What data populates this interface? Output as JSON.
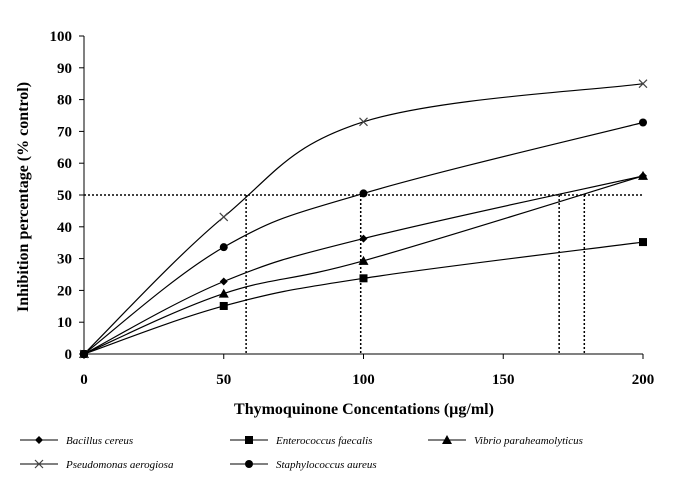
{
  "chart_data": {
    "type": "line",
    "xlabel": "Thymoquinone Concentations (µg/ml)",
    "ylabel": "Inhibition percentage (% control)",
    "xlim": [
      0,
      200
    ],
    "ylim": [
      0,
      100
    ],
    "xticks": [
      0,
      50,
      100,
      150,
      200
    ],
    "yticks": [
      0,
      10,
      20,
      30,
      40,
      50,
      60,
      70,
      80,
      90,
      100
    ],
    "grid": false,
    "legend_position": "bottom",
    "x": [
      0,
      50,
      100,
      200
    ],
    "series": [
      {
        "name": "Bacillus cereus",
        "marker": "diamond",
        "values": [
          0,
          22.8,
          36.3,
          56
        ]
      },
      {
        "name": "Enterococcus faecalis",
        "marker": "square",
        "values": [
          0,
          15.1,
          23.8,
          35.2
        ]
      },
      {
        "name": "Vibrio paraheamolyticus",
        "marker": "triangle",
        "values": [
          0,
          19,
          29.3,
          56
        ]
      },
      {
        "name": "Pseudomonas aerogiosa",
        "marker": "x",
        "values": [
          0,
          43.1,
          73,
          85
        ]
      },
      {
        "name": "Staphylococcus aureus",
        "marker": "circle",
        "values": [
          0,
          33.6,
          50.5,
          72.8
        ]
      }
    ],
    "reference_lines": {
      "horizontal_y": 50,
      "vertical_x": [
        58,
        99,
        170,
        179
      ]
    }
  }
}
